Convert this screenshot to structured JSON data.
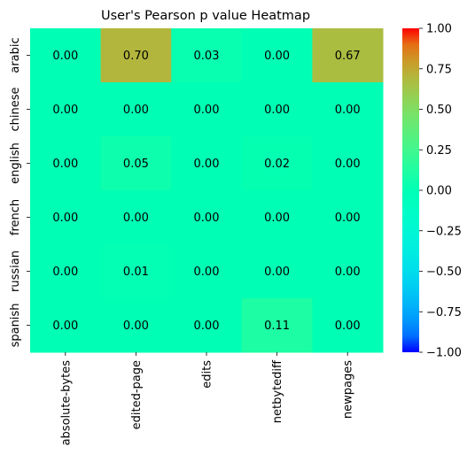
{
  "chart_data": {
    "type": "heatmap",
    "title": "User's Pearson p value Heatmap",
    "xlabel": "",
    "ylabel": "",
    "x_categories": [
      "absolute-bytes",
      "edited-page",
      "edits",
      "netbytediff",
      "newpages"
    ],
    "y_categories": [
      "arabic",
      "chinese",
      "english",
      "french",
      "russian",
      "spanish"
    ],
    "values": [
      [
        0.0,
        0.7,
        0.03,
        0.0,
        0.67
      ],
      [
        0.0,
        0.0,
        0.0,
        0.0,
        0.0
      ],
      [
        0.0,
        0.05,
        0.0,
        0.02,
        0.0
      ],
      [
        0.0,
        0.0,
        0.0,
        0.0,
        0.0
      ],
      [
        0.0,
        0.01,
        0.0,
        0.0,
        0.0
      ],
      [
        0.0,
        0.0,
        0.0,
        0.11,
        0.0
      ]
    ],
    "annotations": [
      [
        "0.00",
        "0.70",
        "0.03",
        "0.00",
        "0.67"
      ],
      [
        "0.00",
        "0.00",
        "0.00",
        "0.00",
        "0.00"
      ],
      [
        "0.00",
        "0.05",
        "0.00",
        "0.02",
        "0.00"
      ],
      [
        "0.00",
        "0.00",
        "0.00",
        "0.00",
        "0.00"
      ],
      [
        "0.00",
        "0.01",
        "0.00",
        "0.00",
        "0.00"
      ],
      [
        "0.00",
        "0.00",
        "0.00",
        "0.11",
        "0.00"
      ]
    ],
    "vmin": -1.0,
    "vmax": 1.0,
    "colormap": "rainbow",
    "colorbar_ticks": [
      1.0,
      0.75,
      0.5,
      0.25,
      0.0,
      -0.25,
      -0.5,
      -0.75,
      -1.0
    ],
    "colorbar_tick_labels": [
      "1.00",
      "0.75",
      "0.50",
      "0.25",
      "0.00",
      "−0.25",
      "−0.50",
      "−0.75",
      "−1.00"
    ],
    "grid": false,
    "colorbar_placement": "right"
  }
}
